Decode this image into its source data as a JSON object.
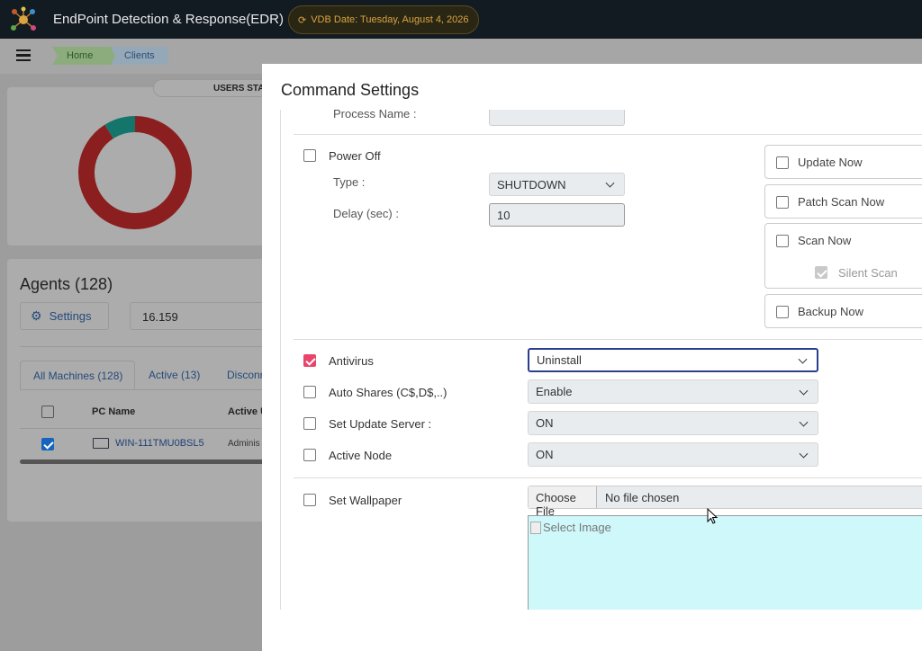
{
  "header": {
    "title": "EndPoint Detection & Response(EDR)",
    "vdb_date": "VDB Date: Tuesday, August 4, 2026"
  },
  "breadcrumb": [
    "Home",
    "Clients"
  ],
  "users_stats": {
    "title": "USERS STA",
    "donut": {
      "values": [
        91,
        9
      ],
      "colors": [
        "#8b1f1f",
        "#14766b"
      ]
    }
  },
  "agents": {
    "title": "Agents (128)",
    "settings_button": "Settings",
    "search": "16.159",
    "tabs": [
      "All Machines (128)",
      "Active (13)",
      "Disconn"
    ],
    "columns": [
      "PC Name",
      "Active U"
    ],
    "rows": [
      {
        "checked": true,
        "pc_name": "WIN-111TMU0BSL5",
        "active_user": "Adminis"
      }
    ]
  },
  "modal": {
    "title": "Command Settings",
    "process_name_label": "Process Name :",
    "power_off": {
      "label": "Power Off",
      "checked": false,
      "type_label": "Type :",
      "type_value": "SHUTDOWN",
      "delay_label": "Delay (sec) :",
      "delay_value": "10"
    },
    "actions": [
      {
        "label": "Update Now",
        "checked": false
      },
      {
        "label": "Patch Scan Now",
        "checked": false
      },
      {
        "label": "Scan Now",
        "checked": false
      },
      {
        "label": "Backup Now",
        "checked": false
      }
    ],
    "silent_scan": {
      "label": "Silent Scan",
      "checked": true
    },
    "options": [
      {
        "label": "Antivirus",
        "checked": true,
        "value": "Uninstall"
      },
      {
        "label": "Auto Shares (C$,D$,..)",
        "checked": false,
        "value": "Enable"
      },
      {
        "label": "Set Update Server :",
        "checked": false,
        "value": "ON"
      },
      {
        "label": "Active Node",
        "checked": false,
        "value": "ON"
      }
    ],
    "wallpaper": {
      "label": "Set Wallpaper",
      "checked": false,
      "button": "Choose File",
      "file_status": "No file chosen",
      "image_alt": "Select Image"
    }
  }
}
